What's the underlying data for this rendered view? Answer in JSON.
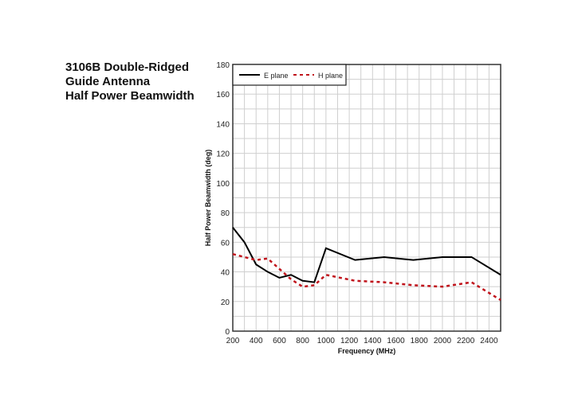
{
  "chart_data": {
    "type": "line",
    "title": [
      "3106B Double-Ridged",
      "Guide Antenna",
      "Half Power Beamwidth"
    ],
    "xlabel": "Frequency (MHz)",
    "ylabel": "Half Power Beamwidth (deg)",
    "xlim": [
      200,
      2500
    ],
    "ylim": [
      0,
      180
    ],
    "xticks": [
      200,
      400,
      600,
      800,
      1000,
      1200,
      1400,
      1600,
      1800,
      2000,
      2200,
      2400
    ],
    "yticks": [
      0,
      20,
      40,
      60,
      80,
      100,
      120,
      140,
      160,
      180
    ],
    "grid": true,
    "legend_position": "top-left",
    "series": [
      {
        "name": "E plane",
        "color": "#000000",
        "style": "solid",
        "x": [
          200,
          300,
          400,
          500,
          600,
          700,
          800,
          900,
          1000,
          1250,
          1500,
          1750,
          2000,
          2250,
          2500
        ],
        "y": [
          70,
          60,
          45,
          40,
          36,
          38,
          34,
          33,
          56,
          48,
          50,
          48,
          50,
          50,
          38
        ]
      },
      {
        "name": "H plane",
        "color": "#c0141c",
        "style": "dashed",
        "x": [
          200,
          400,
          500,
          600,
          700,
          800,
          900,
          1000,
          1250,
          1500,
          1750,
          2000,
          2250,
          2500
        ],
        "y": [
          52,
          48,
          49,
          42,
          35,
          30,
          31,
          38,
          34,
          33,
          31,
          30,
          33,
          21
        ]
      }
    ]
  }
}
